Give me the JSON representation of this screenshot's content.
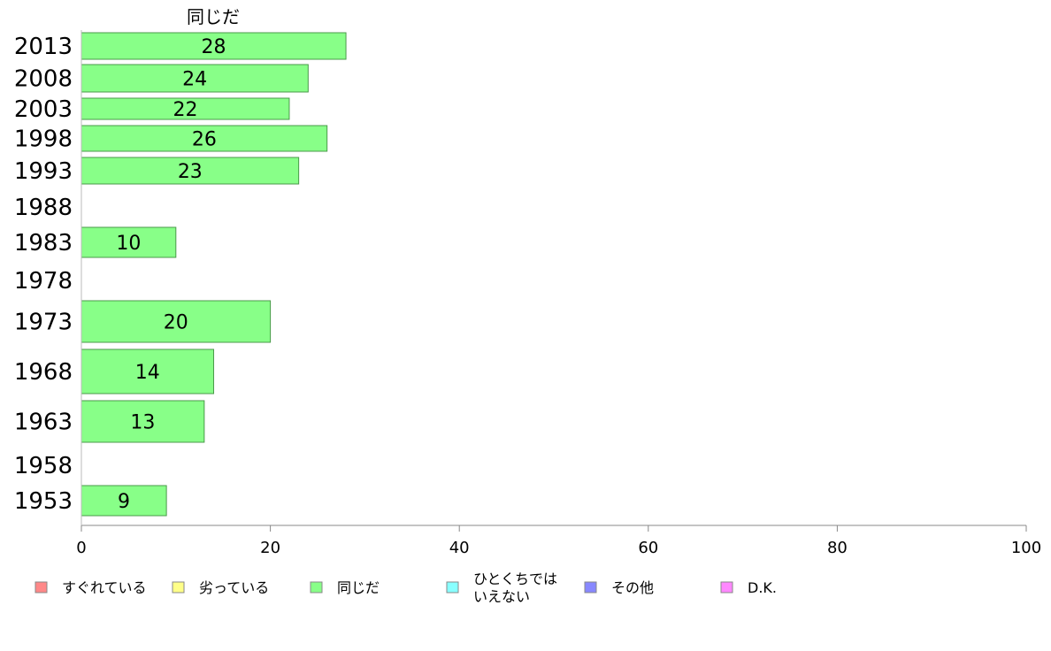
{
  "chart_data": {
    "type": "bar",
    "orientation": "horizontal",
    "title": "同じだ",
    "categories": [
      "2013",
      "2008",
      "2003",
      "1998",
      "1993",
      "1988",
      "1983",
      "1978",
      "1973",
      "1968",
      "1963",
      "1958",
      "1953"
    ],
    "series": [
      {
        "name": "同じだ",
        "color": "#88ff88",
        "values": [
          28,
          24,
          22,
          26,
          23,
          null,
          10,
          null,
          20,
          14,
          13,
          null,
          9
        ]
      }
    ],
    "xlim": [
      0,
      100
    ],
    "xticks": [
      0,
      20,
      40,
      60,
      80,
      100
    ],
    "grid": false,
    "legend_position": "bottom",
    "legend": [
      {
        "label": "すぐれている",
        "color": "#ff8888"
      },
      {
        "label": "劣っている",
        "color": "#ffff88"
      },
      {
        "label": "同じだ",
        "color": "#88ff88"
      },
      {
        "label": "ひとくちでは\nいえない",
        "color": "#88ffff"
      },
      {
        "label": "その他",
        "color": "#8888ff"
      },
      {
        "label": "D.K.",
        "color": "#ff88ff"
      }
    ]
  }
}
